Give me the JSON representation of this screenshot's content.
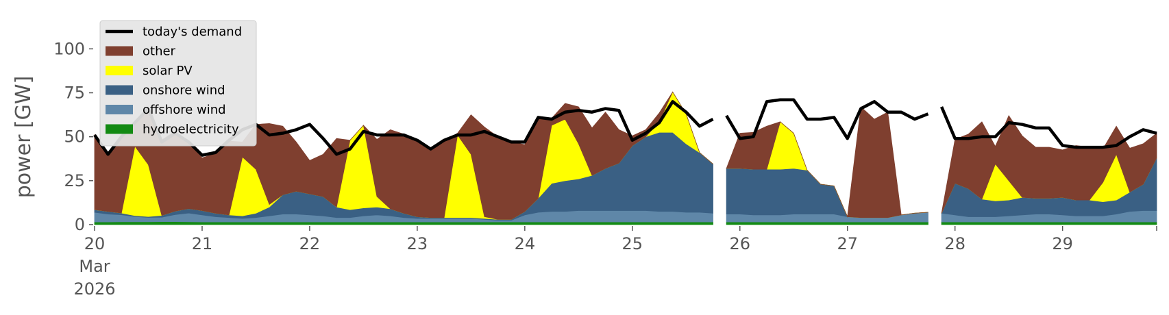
{
  "chart_data": {
    "type": "area",
    "ylabel": "power [GW]",
    "ylim": [
      0,
      120
    ],
    "yticks": [
      0,
      25,
      50,
      75,
      100
    ],
    "x_start": "2026-03-20T00:00",
    "x_end": "2026-03-29T23:00",
    "x_step_hours": 3,
    "xtick_labels": [
      "20",
      "21",
      "22",
      "23",
      "24",
      "25",
      "26",
      "27",
      "28",
      "29"
    ],
    "xtick_sublabels": [
      "Mar",
      "2026"
    ],
    "grid": false,
    "legend_position": "top-left",
    "colors": {
      "demand": "#000000",
      "other": "#7f3f2f",
      "solar": "#ffff00",
      "onshore": "#3a6084",
      "offshore": "#5f87a8",
      "hydro": "#138a13"
    },
    "gaps": [
      [
        46,
        47
      ],
      [
        62,
        63
      ]
    ],
    "series": [
      {
        "key": "hydro",
        "name": "hydroelectricity",
        "values": [
          1.5,
          1.5,
          1.6,
          1.6,
          1.6,
          1.7,
          1.7,
          1.6,
          1.5,
          1.5,
          1.5,
          1.5,
          1.5,
          1.5,
          1.5,
          1.5,
          1.5,
          1.5,
          1.5,
          1.5,
          1.5,
          1.5,
          1.5,
          1.5,
          1.5,
          1.5,
          1.5,
          1.5,
          1.5,
          1.5,
          1.5,
          1.5,
          1.5,
          1.5,
          1.5,
          1.5,
          1.5,
          1.5,
          1.5,
          1.5,
          1.5,
          1.5,
          1.5,
          1.5,
          1.5,
          1.5,
          1.5,
          1.5,
          1.5,
          1.5,
          1.5,
          1.5,
          1.5,
          1.5,
          1.5,
          1.5,
          1.5,
          1.5,
          1.5,
          1.5,
          1.5,
          1.5,
          1.5,
          1.5,
          1.5,
          1.5,
          1.5,
          1.5,
          1.5,
          1.5,
          1.5,
          1.5,
          1.5,
          1.5,
          1.5,
          1.5,
          1.5,
          1.5,
          1.5,
          1.5
        ]
      },
      {
        "key": "offshore",
        "name": "offshore wind",
        "values": [
          5.5,
          4.5,
          4,
          3,
          2.5,
          2.5,
          4,
          5,
          4,
          3,
          2.5,
          2,
          2.5,
          3.5,
          4.5,
          4.5,
          4,
          3.5,
          2.5,
          2.5,
          3.5,
          4,
          3.5,
          2.5,
          2,
          2,
          2,
          2,
          2,
          1.5,
          1,
          1,
          4,
          5.5,
          6,
          6,
          6.5,
          6.5,
          6.5,
          6.5,
          6.5,
          6.5,
          6,
          6,
          5.5,
          5.5,
          5,
          4.5,
          4.5,
          4,
          4,
          4,
          4.5,
          4.5,
          4.5,
          4.5,
          3,
          2.5,
          2.5,
          2.5,
          4,
          5,
          5.5,
          5,
          4,
          3,
          3,
          3,
          3.5,
          4,
          4.5,
          4.5,
          4,
          3.5,
          3.5,
          3.5,
          4.5,
          6,
          6.5,
          6.5
        ]
      },
      {
        "key": "onshore",
        "name": "onshore wind",
        "values": [
          1.5,
          1.5,
          1,
          0.5,
          0.5,
          1,
          2,
          2.5,
          2.5,
          2,
          1.5,
          1.5,
          2.5,
          5,
          11,
          13,
          12,
          11,
          6,
          4.5,
          4.5,
          4.5,
          4,
          2.5,
          1,
          0.5,
          0.5,
          0.5,
          0.5,
          0.5,
          0.5,
          0.5,
          2,
          8,
          16,
          17.5,
          18,
          20,
          24,
          27,
          37,
          42,
          45,
          45,
          39,
          34,
          28,
          26,
          26,
          26,
          26,
          26,
          26,
          25,
          17,
          16,
          0,
          0,
          0,
          0,
          0,
          0,
          0,
          0,
          18,
          16,
          10,
          9,
          9,
          10,
          9,
          9,
          10,
          9,
          9,
          8,
          8,
          11,
          15,
          30
        ]
      },
      {
        "key": "solar",
        "name": "solar PV",
        "values": [
          0,
          0,
          0,
          39.5,
          29.5,
          0,
          0,
          0,
          0,
          0,
          0,
          33.5,
          25,
          1.5,
          0,
          0,
          0,
          0,
          0,
          39.5,
          47,
          6,
          0,
          0,
          0,
          0,
          0,
          47,
          36,
          1,
          0,
          0,
          0,
          0,
          33,
          35,
          20,
          0,
          0,
          0,
          0,
          0,
          6,
          23,
          17,
          0,
          0,
          0,
          0,
          0,
          0,
          27,
          20,
          0,
          0,
          0,
          0,
          0,
          0,
          0,
          0,
          0,
          0,
          0,
          0,
          0,
          0,
          21,
          11,
          0,
          0,
          0,
          0,
          0,
          0,
          11,
          26,
          0,
          0,
          0
        ]
      },
      {
        "key": "other",
        "name": "other",
        "values": [
          42.5,
          32,
          42.5,
          12,
          32.5,
          43,
          45.5,
          37,
          30,
          34,
          42,
          8.5,
          25.5,
          46,
          39,
          28,
          19,
          24,
          39,
          0,
          0,
          32.5,
          45,
          45,
          43,
          39,
          43.5,
          1,
          22.5,
          51,
          47,
          44,
          38,
          46.5,
          4,
          9,
          21,
          27,
          32,
          19,
          5.5,
          4,
          5,
          0,
          0,
          0,
          0,
          0,
          20,
          21,
          24.5,
          0,
          0,
          0,
          0,
          0,
          0,
          63,
          56,
          60,
          0,
          0,
          0,
          0,
          25,
          31,
          44,
          10,
          37,
          35,
          29,
          29,
          27,
          31,
          30,
          19,
          16,
          25,
          23,
          14
        ]
      },
      {
        "key": "demand",
        "name": "today's demand",
        "line": true,
        "values": [
          51,
          40,
          50,
          58,
          66,
          47,
          52,
          47,
          39.5,
          41,
          48,
          54,
          57,
          51,
          52,
          54,
          57,
          49,
          40,
          43,
          53,
          51,
          51,
          51,
          48,
          43,
          48,
          51,
          51,
          53,
          50,
          47,
          47,
          61,
          60,
          64,
          65,
          64,
          66,
          65,
          48,
          52,
          58,
          70,
          64,
          56,
          60,
          62,
          49,
          50,
          70,
          71,
          71,
          60,
          60,
          61,
          49,
          66,
          70,
          64,
          64,
          60,
          63,
          67,
          49,
          49,
          50,
          50,
          58,
          57,
          55,
          55,
          45,
          44,
          44,
          44,
          45,
          50,
          54,
          52
        ]
      }
    ]
  }
}
